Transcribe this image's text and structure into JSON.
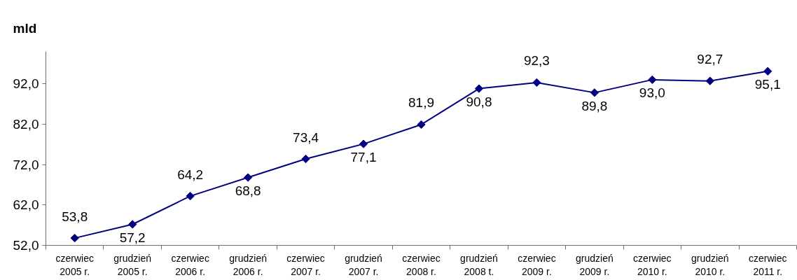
{
  "chart_data": {
    "type": "line",
    "title": "mld",
    "categories": [
      "czerwiec 2005 r.",
      "grudzień 2005 r.",
      "czerwiec 2006 r.",
      "grudzień 2006 r.",
      "czerwiec 2007 r.",
      "grudzień 2007 r.",
      "czerwiec 2008 r.",
      "grudzień 2008 t.",
      "czerwiec 2009 r.",
      "grudzień 2009 r.",
      "czerwiec 2010 r.",
      "grudzień 2010 r.",
      "czerwiec 2011 r."
    ],
    "values": [
      53.8,
      57.2,
      64.2,
      68.8,
      73.4,
      77.1,
      81.9,
      90.8,
      92.3,
      89.8,
      93.0,
      92.7,
      95.1
    ],
    "value_labels": [
      "53,8",
      "57,2",
      "64,2",
      "68,8",
      "73,4",
      "77,1",
      "81,9",
      "90,8",
      "92,3",
      "89,8",
      "93,0",
      "92,7",
      "95,1"
    ],
    "color": "#000080",
    "marker": "diamond",
    "line_style": "solid",
    "ylim": [
      52,
      100
    ],
    "yticks": [
      {
        "value": 52,
        "label": "52,0"
      },
      {
        "value": 62,
        "label": "62,0"
      },
      {
        "value": 72,
        "label": "72,0"
      },
      {
        "value": 82,
        "label": "82,0"
      },
      {
        "value": 92,
        "label": "92,0"
      }
    ]
  }
}
